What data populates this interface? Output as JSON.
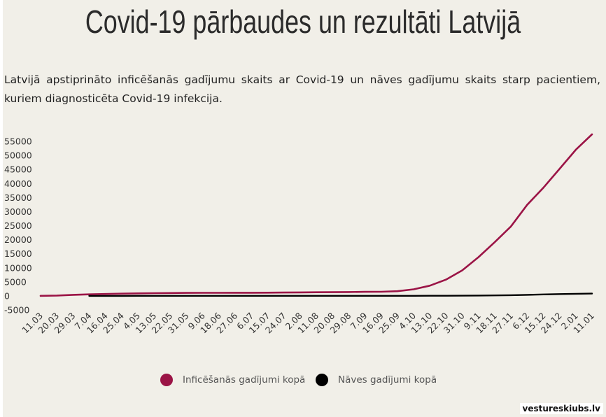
{
  "title": "Covid-19 pārbaudes un rezultāti Latvijā",
  "subtitle": "Latvijā apstiprināto inficēšanās gadījumu skaits ar Covid-19 un nāves gadījumu skaits starp pacientiem, kuriem diagnosticēta Covid-19 infekcija.",
  "watermark": "vestureskiubs.lv",
  "chart_data": {
    "type": "line",
    "title": "",
    "xlabel": "",
    "ylabel": "",
    "ylim": [
      -5000,
      55000
    ],
    "y_ticks": [
      55000,
      50000,
      45000,
      40000,
      35000,
      30000,
      25000,
      20000,
      15000,
      10000,
      5000,
      0,
      -5000
    ],
    "y_tick_labels": [
      "55000",
      "50000",
      "45000",
      "40000",
      "35000",
      "30000",
      "25000",
      "20000",
      "15000",
      "10000",
      "5000",
      "0",
      "-5000"
    ],
    "x": [
      "11.03",
      "20.03",
      "29.03",
      "7.04",
      "16.04",
      "25.04",
      "4.05",
      "13.05",
      "22.05",
      "31.05",
      "9.06",
      "18.06",
      "27.06",
      "6.07",
      "15.07",
      "24.07",
      "2.08",
      "11.08",
      "20.08",
      "29.08",
      "7.09",
      "16.09",
      "25.09",
      "4.10",
      "13.10",
      "22.10",
      "31.10",
      "9.11",
      "18.11",
      "27.11",
      "6.12",
      "15.12",
      "24.12",
      "2.01",
      "11.01"
    ],
    "grid": false,
    "legend_position": "bottom",
    "series": [
      {
        "name": "Inficēšanās gadījumi kopā",
        "color": "#9b1446",
        "values": [
          30,
          139,
          376,
          548,
          682,
          795,
          890,
          970,
          1025,
          1080,
          1090,
          1110,
          1115,
          1120,
          1150,
          1200,
          1250,
          1300,
          1320,
          1380,
          1450,
          1470,
          1680,
          2350,
          3650,
          5800,
          9100,
          13800,
          19100,
          24700,
          32400,
          38500,
          45200,
          52000,
          57500
        ]
      },
      {
        "name": "Nāves gadījumi kopā",
        "color": "#000000",
        "values": [
          null,
          null,
          null,
          2,
          5,
          12,
          18,
          20,
          22,
          25,
          26,
          28,
          29,
          30,
          31,
          32,
          33,
          33,
          34,
          34,
          35,
          36,
          37,
          39,
          45,
          55,
          80,
          120,
          180,
          260,
          380,
          520,
          650,
          760,
          820
        ]
      }
    ]
  }
}
